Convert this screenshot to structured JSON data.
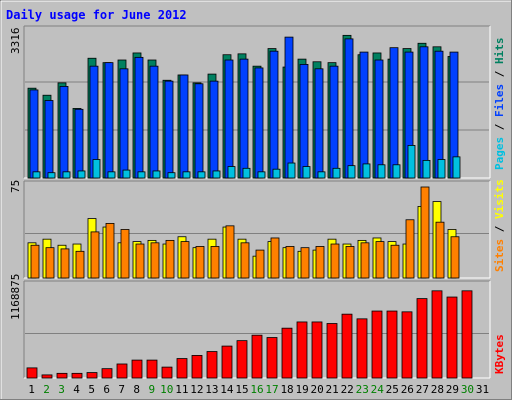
{
  "chart_data": [
    {
      "type": "bar",
      "title": "Daily usage for June 2012",
      "ymax_label": "3316",
      "right_label": {
        "parts": [
          {
            "text": "Pages",
            "color": "#00c0e0"
          },
          {
            "text": " / ",
            "color": "#000000"
          },
          {
            "text": "Files",
            "color": "#0040ff"
          },
          {
            "text": " / ",
            "color": "#000000"
          },
          {
            "text": "Hits",
            "color": "#008060"
          }
        ]
      },
      "categories": [
        "1",
        "2",
        "3",
        "4",
        "5",
        "6",
        "7",
        "8",
        "9",
        "10",
        "11",
        "12",
        "13",
        "14",
        "15",
        "16",
        "17",
        "18",
        "19",
        "20",
        "21",
        "22",
        "23",
        "24",
        "25",
        "26",
        "27",
        "28",
        "29",
        "30",
        "31"
      ],
      "ylim": [
        0,
        3316
      ],
      "series": [
        {
          "name": "Hits",
          "color": "#008060",
          "values": [
            2040,
            1880,
            2160,
            1580,
            2720,
            2620,
            2680,
            2840,
            2680,
            2220,
            2340,
            2160,
            2360,
            2800,
            2820,
            2540,
            2940,
            2520,
            2700,
            2640,
            2620,
            3240,
            2800,
            2840,
            2700,
            2940,
            3060,
            2980,
            2760,
            0,
            0
          ]
        },
        {
          "name": "Files",
          "color": "#0040ff",
          "values": [
            2000,
            1760,
            2080,
            1560,
            2540,
            2620,
            2480,
            2740,
            2540,
            2200,
            2340,
            2140,
            2200,
            2680,
            2700,
            2500,
            2880,
            3200,
            2580,
            2480,
            2540,
            3160,
            2860,
            2680,
            2960,
            2860,
            2980,
            2880,
            2860,
            0,
            0
          ]
        },
        {
          "name": "Pages",
          "color": "#00c0e0",
          "values": [
            140,
            120,
            140,
            160,
            420,
            140,
            180,
            140,
            160,
            120,
            140,
            140,
            160,
            260,
            220,
            140,
            200,
            340,
            260,
            140,
            220,
            280,
            320,
            300,
            300,
            740,
            400,
            420,
            480,
            0,
            0
          ]
        }
      ]
    },
    {
      "type": "bar",
      "ymax_label": "75",
      "right_label": {
        "parts": [
          {
            "text": "Sites",
            "color": "#ff8000"
          },
          {
            "text": " / ",
            "color": "#000000"
          },
          {
            "text": "Visits",
            "color": "#ffff00"
          }
        ]
      },
      "ylim": [
        0,
        75
      ],
      "series": [
        {
          "name": "Visits",
          "color": "#ffff00",
          "values": [
            29,
            32,
            27,
            28,
            49,
            42,
            29,
            30,
            31,
            28,
            34,
            25,
            32,
            42,
            32,
            18,
            30,
            25,
            22,
            23,
            32,
            28,
            31,
            33,
            30,
            28,
            59,
            63,
            40,
            0,
            0
          ]
        },
        {
          "name": "Sites",
          "color": "#ff8000",
          "values": [
            27,
            25,
            24,
            22,
            38,
            45,
            40,
            28,
            29,
            31,
            30,
            26,
            26,
            43,
            29,
            23,
            33,
            26,
            25,
            26,
            28,
            26,
            29,
            30,
            27,
            48,
            75,
            46,
            34,
            0,
            0
          ]
        }
      ]
    },
    {
      "type": "bar",
      "ymax_label": "1168875",
      "right_label": {
        "parts": [
          {
            "text": "KBytes",
            "color": "#ff0000"
          }
        ]
      },
      "ylim": [
        0,
        1168875
      ],
      "series": [
        {
          "name": "KBytes",
          "color": "#ff0000",
          "values": [
            130000,
            40000,
            60000,
            60000,
            70000,
            120000,
            180000,
            230000,
            230000,
            140000,
            250000,
            290000,
            340000,
            410000,
            480000,
            550000,
            520000,
            640000,
            720000,
            720000,
            700000,
            820000,
            760000,
            860000,
            860000,
            850000,
            1020000,
            1120000,
            1040000,
            1120000,
            0
          ]
        }
      ]
    }
  ],
  "weekend_days": [
    2,
    3,
    9,
    10,
    16,
    17,
    23,
    24,
    30
  ]
}
